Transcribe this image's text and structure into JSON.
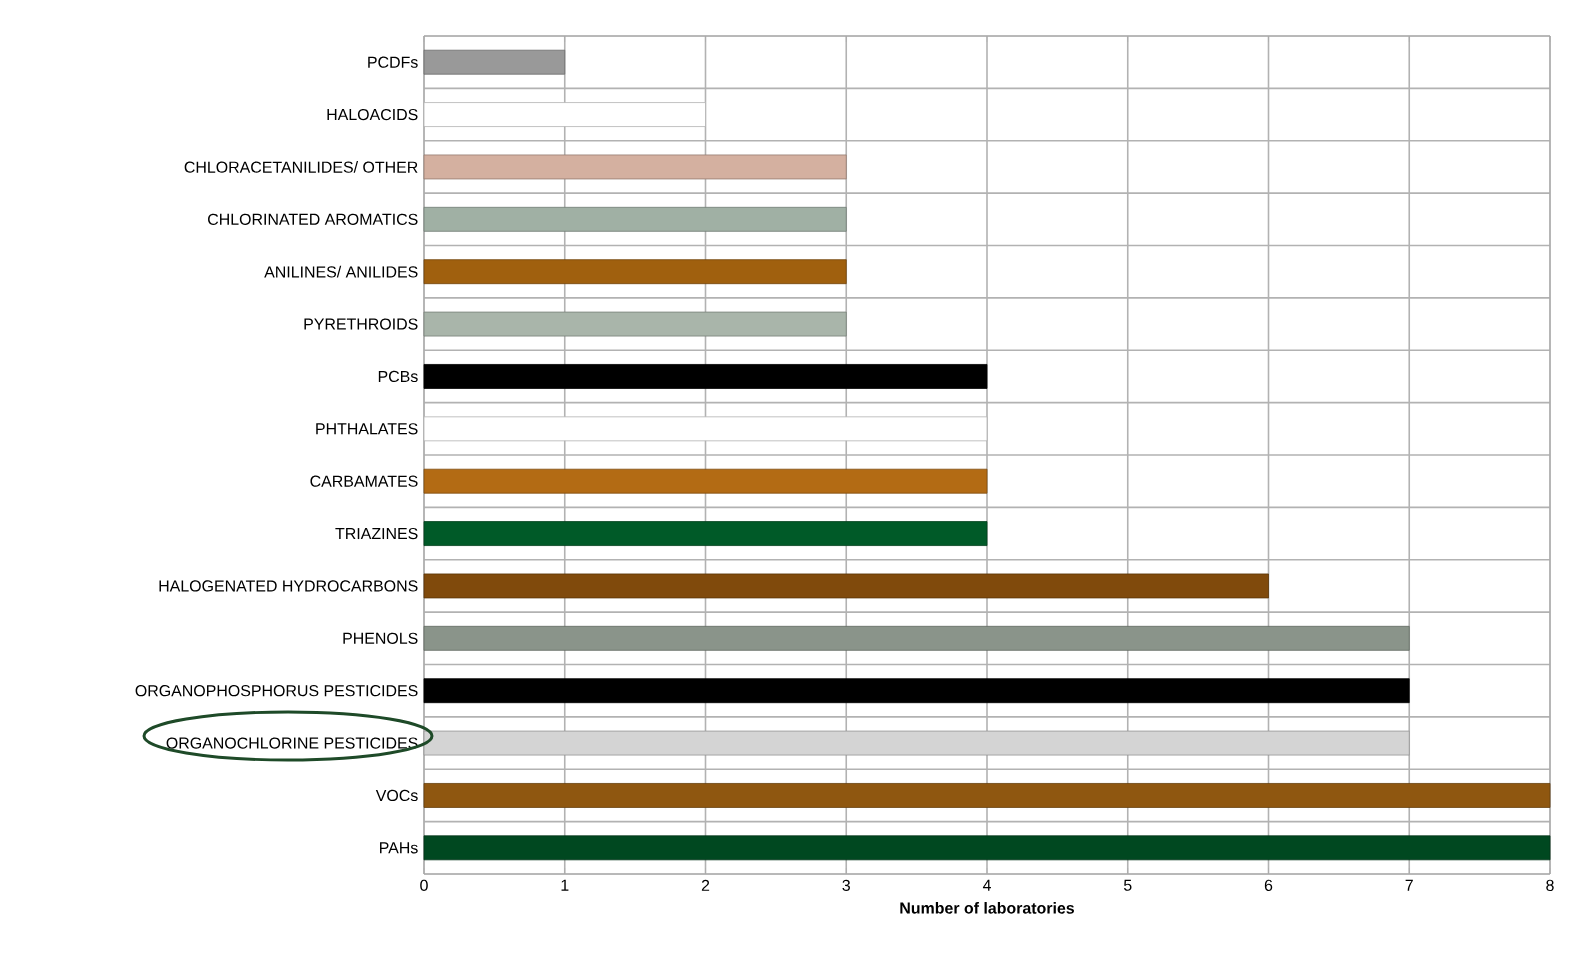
{
  "chart_data": {
    "type": "bar",
    "orientation": "horizontal",
    "xlabel": "Number of laboratories",
    "categories": [
      "PCDFs",
      "HALOACIDS",
      "CHLORACETANILIDES/ OTHER",
      "CHLORINATED AROMATICS",
      "ANILINES/ ANILIDES",
      "PYRETHROIDS",
      "PCBs",
      "PHTHALATES",
      "CARBAMATES",
      "TRIAZINES",
      "HALOGENATED HYDROCARBONS",
      "PHENOLS",
      "ORGANOPHOSPHORUS PESTICIDES",
      "ORGANOCHLORINE PESTICIDES",
      "VOCs",
      "PAHs"
    ],
    "values": [
      1,
      2,
      3,
      3,
      3,
      3,
      4,
      4,
      4,
      4,
      6,
      7,
      7,
      7,
      8,
      8
    ],
    "colors": [
      "#999999",
      "#ffffff",
      "#d4b0a0",
      "#a0b0a4",
      "#a0600e",
      "#a9b5aa",
      "#000000",
      "#ffffff",
      "#b36b14",
      "#005a28",
      "#804a0c",
      "#8a948a",
      "#000000",
      "#d4d4d4",
      "#8f5710",
      "#004820"
    ],
    "xlim": [
      0,
      8
    ],
    "xticks": [
      0,
      1,
      2,
      3,
      4,
      5,
      6,
      7,
      8
    ],
    "grid": true
  }
}
